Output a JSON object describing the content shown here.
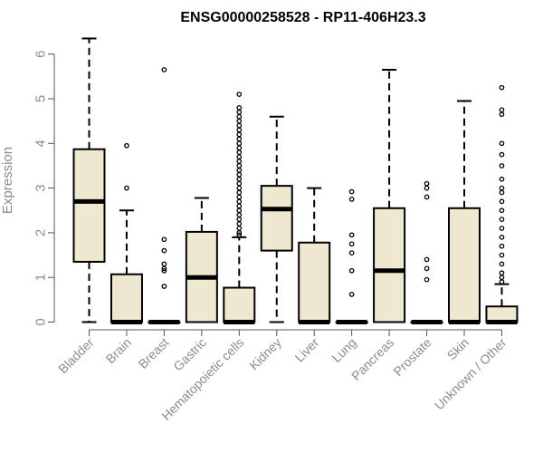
{
  "chart_data": {
    "type": "boxplot",
    "title": "ENSG00000258528 - RP11-406H23.3",
    "xlabel": "",
    "ylabel": "Expression",
    "ylim": [
      0,
      6.3
    ],
    "yticks": [
      0,
      1,
      2,
      3,
      4,
      5,
      6
    ],
    "grid": false,
    "colors": {
      "box_fill": "#efe8d0",
      "stroke": "#000000",
      "axis_text": "#8c8c8c"
    },
    "categories": [
      "Bladder",
      "Brain",
      "Breast",
      "Gastric",
      "Hematopoietic cells",
      "Kidney",
      "Liver",
      "Lung",
      "Pancreas",
      "Prostate",
      "Skin",
      "Unknown / Other"
    ],
    "boxes": [
      {
        "category": "Bladder",
        "min": 0,
        "q1": 1.35,
        "median": 2.7,
        "q3": 3.87,
        "max": 6.35,
        "outliers": []
      },
      {
        "category": "Brain",
        "min": 0,
        "q1": 0,
        "median": 0,
        "q3": 1.07,
        "max": 2.5,
        "outliers": [
          3.0,
          3.95
        ]
      },
      {
        "category": "Breast",
        "min": 0,
        "q1": 0,
        "median": 0,
        "q3": 0,
        "max": 0,
        "outliers": [
          0.8,
          1.15,
          1.2,
          1.3,
          1.6,
          1.85,
          5.65
        ]
      },
      {
        "category": "Gastric",
        "min": 0,
        "q1": 0,
        "median": 1.0,
        "q3": 2.02,
        "max": 2.78,
        "outliers": []
      },
      {
        "category": "Hematopoietic cells",
        "min": 0,
        "q1": 0,
        "median": 0,
        "q3": 0.77,
        "max": 1.9,
        "outliers": [
          1.95,
          2.0,
          2.1,
          2.2,
          2.3,
          2.4,
          2.5,
          2.6,
          2.7,
          2.8,
          2.9,
          3.0,
          3.1,
          3.2,
          3.3,
          3.4,
          3.5,
          3.6,
          3.7,
          3.8,
          3.9,
          4.0,
          4.1,
          4.2,
          4.3,
          4.4,
          4.5,
          4.6,
          4.7,
          4.8,
          5.1
        ]
      },
      {
        "category": "Kidney",
        "min": 0,
        "q1": 1.6,
        "median": 2.53,
        "q3": 3.05,
        "max": 4.6,
        "outliers": []
      },
      {
        "category": "Liver",
        "min": 0,
        "q1": 0,
        "median": 0,
        "q3": 1.78,
        "max": 3.0,
        "outliers": []
      },
      {
        "category": "Lung",
        "min": 0,
        "q1": 0,
        "median": 0,
        "q3": 0,
        "max": 0,
        "outliers": [
          0.62,
          1.15,
          1.55,
          1.75,
          1.95,
          2.75,
          2.92
        ]
      },
      {
        "category": "Pancreas",
        "min": 0,
        "q1": 0,
        "median": 1.15,
        "q3": 2.55,
        "max": 5.65,
        "outliers": []
      },
      {
        "category": "Prostate",
        "min": 0,
        "q1": 0,
        "median": 0,
        "q3": 0,
        "max": 0,
        "outliers": [
          0.95,
          1.2,
          1.4,
          2.8,
          3.0,
          3.1
        ]
      },
      {
        "category": "Skin",
        "min": 0,
        "q1": 0,
        "median": 0,
        "q3": 2.55,
        "max": 4.95,
        "outliers": []
      },
      {
        "category": "Unknown / Other",
        "min": 0,
        "q1": 0,
        "median": 0,
        "q3": 0.35,
        "max": 0.85,
        "outliers": [
          0.9,
          1.0,
          1.1,
          1.3,
          1.5,
          1.7,
          1.9,
          2.1,
          2.3,
          2.5,
          2.7,
          2.9,
          3.0,
          3.2,
          3.5,
          3.75,
          4.0,
          4.65,
          4.75,
          5.25
        ]
      }
    ]
  }
}
